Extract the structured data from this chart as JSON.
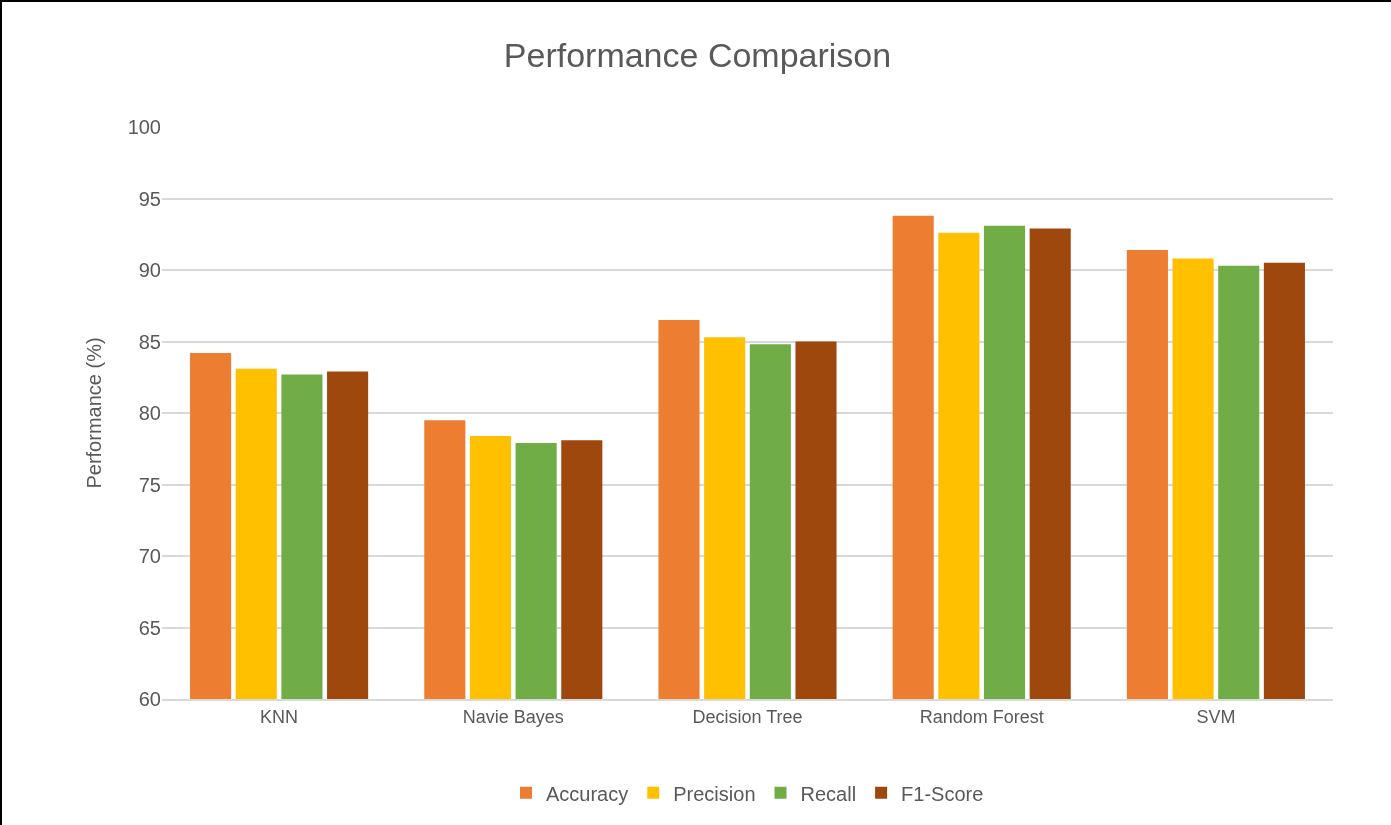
{
  "chart_data": {
    "type": "bar",
    "title": "Performance Comparison",
    "ylabel": "Performance (%)",
    "categories": [
      "KNN",
      "Navie Bayes",
      "Decision Tree",
      "Random Forest",
      "SVM"
    ],
    "series": [
      {
        "name": "Accuracy",
        "color": "#ed7d31",
        "values": [
          84.2,
          79.5,
          86.5,
          93.8,
          91.4
        ]
      },
      {
        "name": "Precision",
        "color": "#ffc000",
        "values": [
          83.1,
          78.4,
          85.3,
          92.6,
          90.8
        ]
      },
      {
        "name": "Recall",
        "color": "#70ad47",
        "values": [
          82.7,
          77.9,
          84.8,
          93.1,
          90.3
        ]
      },
      {
        "name": "F1-Score",
        "color": "#9e480e",
        "values": [
          82.9,
          78.1,
          85.0,
          92.9,
          90.5
        ]
      }
    ],
    "ylim": [
      60,
      100
    ],
    "yticks": [
      60,
      65,
      70,
      75,
      80,
      85,
      90,
      95,
      100
    ],
    "grid": "y",
    "legend": "bottom"
  }
}
